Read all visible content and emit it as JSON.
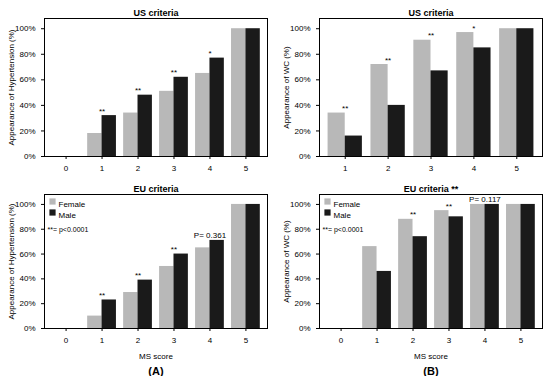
{
  "chart_data": [
    {
      "type": "bar",
      "title": "US criteria",
      "categories": [
        0,
        1,
        2,
        3,
        4,
        5
      ],
      "series": [
        {
          "name": "Female",
          "color": "#b8b8b8",
          "values": [
            null,
            18,
            34,
            51,
            65,
            100
          ]
        },
        {
          "name": "Male",
          "color": "#1a1a1a",
          "values": [
            null,
            32,
            48,
            62,
            77,
            100
          ]
        }
      ],
      "ylim": [
        0,
        108
      ],
      "yticks": [
        {
          "value": 0,
          "label": "0%"
        },
        {
          "value": 20,
          "label": "20%"
        },
        {
          "value": 40,
          "label": "40%"
        },
        {
          "value": 60,
          "label": "60%"
        },
        {
          "value": 80,
          "label": "80%"
        },
        {
          "value": 100,
          "label": "100%"
        }
      ],
      "y_label": "Appearance of Hypertension (%)",
      "annotations": [
        {
          "x": 1,
          "text": "**"
        },
        {
          "x": 2,
          "text": "**"
        },
        {
          "x": 3,
          "text": "**"
        },
        {
          "x": 4,
          "text": "*"
        }
      ]
    },
    {
      "type": "bar",
      "title": "EU criteria",
      "categories": [
        0,
        1,
        2,
        3,
        4,
        5
      ],
      "series": [
        {
          "name": "Female",
          "color": "#b8b8b8",
          "values": [
            null,
            10,
            29,
            50,
            65,
            100
          ]
        },
        {
          "name": "Male",
          "color": "#1a1a1a",
          "values": [
            null,
            23,
            39,
            60,
            71,
            100
          ]
        }
      ],
      "ylim": [
        0,
        108
      ],
      "yticks": [
        {
          "value": 0,
          "label": "0%"
        },
        {
          "value": 20,
          "label": "20%"
        },
        {
          "value": 40,
          "label": "40%"
        },
        {
          "value": 60,
          "label": "60%"
        },
        {
          "value": 80,
          "label": "80%"
        },
        {
          "value": 100,
          "label": "100%"
        }
      ],
      "x_label": "MS score",
      "y_label": "Appearance of Hypertension (%)",
      "legend": "upper left",
      "annotations": [
        {
          "x": 1,
          "text": "**"
        },
        {
          "x": 2,
          "text": "**"
        },
        {
          "x": 3,
          "text": "**"
        },
        {
          "x": 4,
          "text": "P= 0.361"
        },
        {
          "text": "**= p<0.0001"
        }
      ],
      "caption": "(A)"
    },
    {
      "type": "bar",
      "title": "US criteria",
      "categories": [
        1,
        2,
        3,
        4,
        5
      ],
      "series": [
        {
          "name": "Female",
          "color": "#b8b8b8",
          "values": [
            34,
            72,
            91,
            97,
            100
          ]
        },
        {
          "name": "Male",
          "color": "#1a1a1a",
          "values": [
            16,
            40,
            67,
            85,
            100
          ]
        }
      ],
      "ylim": [
        0,
        108
      ],
      "yticks": [
        {
          "value": 0,
          "label": "0%"
        },
        {
          "value": 20,
          "label": "20%"
        },
        {
          "value": 40,
          "label": "40%"
        },
        {
          "value": 60,
          "label": "60%"
        },
        {
          "value": 80,
          "label": "80%"
        },
        {
          "value": 100,
          "label": "100%"
        }
      ],
      "y_label": "Appearance of WC (%)",
      "annotations": [
        {
          "x": 1,
          "text": "**"
        },
        {
          "x": 2,
          "text": "**"
        },
        {
          "x": 3,
          "text": "**"
        },
        {
          "x": 4,
          "text": "*"
        }
      ]
    },
    {
      "type": "bar",
      "title": "EU criteria **",
      "categories": [
        0,
        1,
        2,
        3,
        4,
        5
      ],
      "series": [
        {
          "name": "Female",
          "color": "#b8b8b8",
          "values": [
            null,
            66,
            88,
            95,
            100,
            100
          ]
        },
        {
          "name": "Male",
          "color": "#1a1a1a",
          "values": [
            null,
            46,
            74,
            90,
            100,
            100
          ]
        }
      ],
      "ylim": [
        0,
        108
      ],
      "yticks": [
        {
          "value": 0,
          "label": "0%"
        },
        {
          "value": 20,
          "label": "20%"
        },
        {
          "value": 40,
          "label": "40%"
        },
        {
          "value": 60,
          "label": "60%"
        },
        {
          "value": 80,
          "label": "80%"
        },
        {
          "value": 100,
          "label": "100%"
        }
      ],
      "x_label": "MS score",
      "y_label": "Appearance of WC (%)",
      "legend": "upper left",
      "annotations": [
        {
          "x": 2,
          "text": "**"
        },
        {
          "x": 3,
          "text": "**"
        },
        {
          "x": 4,
          "text": "P= 0.117"
        },
        {
          "text": "**= p<0.0001"
        }
      ],
      "caption": "(B)"
    }
  ]
}
